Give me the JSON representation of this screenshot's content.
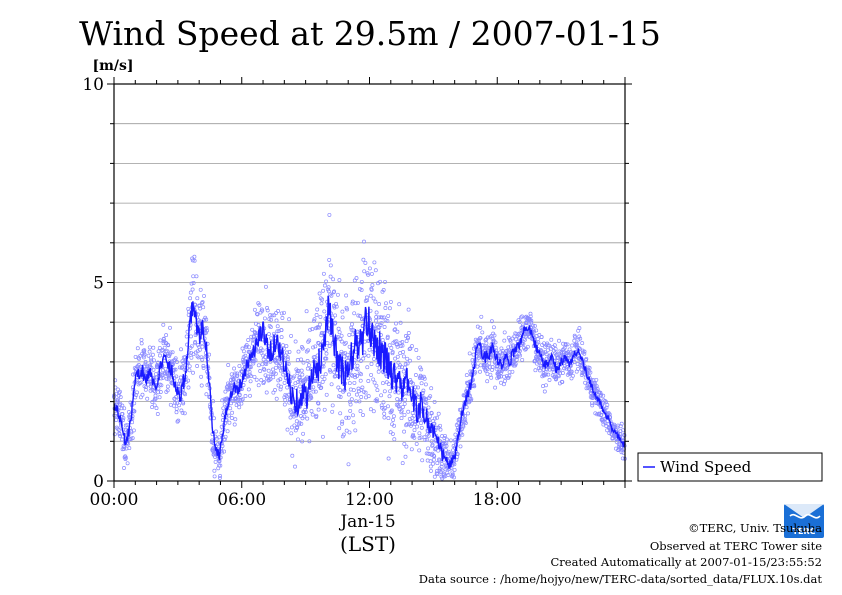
{
  "chart_data": {
    "type": "scatter",
    "title": "Wind Speed at 29.5m / 2007-01-15",
    "ylabel_unit": "[m/s]",
    "xlabel": "Jan-15",
    "xlabel_sub": "(LST)",
    "x_unit": "hours (LST)",
    "xlim": [
      0,
      24
    ],
    "ylim": [
      0,
      10
    ],
    "y_ticks": [
      {
        "value": 0,
        "label": "0"
      },
      {
        "value": 5,
        "label": "5"
      },
      {
        "value": 10,
        "label": "10"
      }
    ],
    "x_ticks": [
      {
        "value": 0,
        "label": "00:00"
      },
      {
        "value": 6,
        "label": "06:00"
      },
      {
        "value": 12,
        "label": "12:00"
      },
      {
        "value": 18,
        "label": "18:00"
      }
    ],
    "grid": true,
    "legend_position": "right",
    "series": [
      {
        "name": "Wind Speed",
        "color": "#1a1aff",
        "scatter_color": "#8a8aff",
        "mean_profile": [
          [
            0.0,
            1.9
          ],
          [
            0.3,
            1.6
          ],
          [
            0.5,
            1.1
          ],
          [
            0.6,
            1.0
          ],
          [
            0.8,
            1.6
          ],
          [
            1.0,
            2.6
          ],
          [
            1.3,
            2.8
          ],
          [
            1.5,
            2.5
          ],
          [
            1.7,
            2.8
          ],
          [
            1.9,
            2.3
          ],
          [
            2.1,
            2.7
          ],
          [
            2.3,
            3.1
          ],
          [
            2.5,
            3.0
          ],
          [
            2.7,
            2.8
          ],
          [
            2.9,
            2.4
          ],
          [
            3.1,
            2.1
          ],
          [
            3.3,
            2.6
          ],
          [
            3.5,
            3.4
          ],
          [
            3.6,
            4.0
          ],
          [
            3.7,
            4.6
          ],
          [
            3.8,
            4.3
          ],
          [
            3.9,
            3.8
          ],
          [
            4.0,
            3.6
          ],
          [
            4.2,
            3.9
          ],
          [
            4.35,
            3.3
          ],
          [
            4.5,
            2.3
          ],
          [
            4.6,
            1.4
          ],
          [
            4.75,
            0.8
          ],
          [
            4.9,
            0.6
          ],
          [
            5.05,
            0.9
          ],
          [
            5.2,
            1.5
          ],
          [
            5.4,
            2.1
          ],
          [
            5.6,
            2.4
          ],
          [
            5.8,
            2.3
          ],
          [
            6.0,
            2.5
          ],
          [
            6.2,
            2.9
          ],
          [
            6.4,
            3.1
          ],
          [
            6.6,
            3.3
          ],
          [
            6.8,
            3.6
          ],
          [
            7.0,
            3.8
          ],
          [
            7.2,
            3.4
          ],
          [
            7.4,
            3.2
          ],
          [
            7.6,
            3.6
          ],
          [
            7.8,
            3.3
          ],
          [
            8.0,
            2.9
          ],
          [
            8.2,
            2.5
          ],
          [
            8.4,
            2.1
          ],
          [
            8.6,
            2.0
          ],
          [
            8.8,
            2.2
          ],
          [
            9.0,
            2.1
          ],
          [
            9.2,
            2.4
          ],
          [
            9.4,
            2.7
          ],
          [
            9.6,
            2.9
          ],
          [
            9.8,
            3.3
          ],
          [
            10.0,
            4.1
          ],
          [
            10.1,
            4.6
          ],
          [
            10.2,
            3.8
          ],
          [
            10.4,
            3.3
          ],
          [
            10.6,
            2.9
          ],
          [
            10.8,
            2.6
          ],
          [
            11.0,
            2.7
          ],
          [
            11.2,
            3.2
          ],
          [
            11.4,
            3.5
          ],
          [
            11.6,
            3.4
          ],
          [
            11.8,
            3.9
          ],
          [
            12.0,
            3.9
          ],
          [
            12.2,
            3.6
          ],
          [
            12.4,
            3.4
          ],
          [
            12.6,
            3.2
          ],
          [
            12.8,
            3.0
          ],
          [
            13.0,
            2.8
          ],
          [
            13.2,
            2.6
          ],
          [
            13.4,
            2.7
          ],
          [
            13.6,
            2.2
          ],
          [
            13.8,
            2.6
          ],
          [
            14.0,
            2.1
          ],
          [
            14.2,
            1.8
          ],
          [
            14.4,
            1.9
          ],
          [
            14.6,
            1.7
          ],
          [
            14.8,
            1.4
          ],
          [
            15.0,
            1.3
          ],
          [
            15.2,
            0.9
          ],
          [
            15.4,
            0.7
          ],
          [
            15.6,
            0.5
          ],
          [
            15.8,
            0.4
          ],
          [
            16.0,
            0.6
          ],
          [
            16.2,
            1.2
          ],
          [
            16.4,
            1.8
          ],
          [
            16.6,
            2.2
          ],
          [
            16.8,
            2.5
          ],
          [
            17.0,
            3.2
          ],
          [
            17.2,
            3.4
          ],
          [
            17.4,
            3.1
          ],
          [
            17.6,
            3.2
          ],
          [
            17.8,
            3.4
          ],
          [
            18.0,
            3.0
          ],
          [
            18.2,
            2.9
          ],
          [
            18.4,
            3.1
          ],
          [
            18.6,
            3.0
          ],
          [
            18.8,
            3.3
          ],
          [
            19.0,
            3.4
          ],
          [
            19.2,
            3.7
          ],
          [
            19.4,
            3.9
          ],
          [
            19.6,
            3.8
          ],
          [
            19.8,
            3.4
          ],
          [
            20.0,
            3.2
          ],
          [
            20.2,
            2.9
          ],
          [
            20.4,
            3.0
          ],
          [
            20.6,
            3.1
          ],
          [
            20.8,
            2.8
          ],
          [
            21.0,
            3.0
          ],
          [
            21.2,
            3.1
          ],
          [
            21.4,
            2.9
          ],
          [
            21.6,
            3.2
          ],
          [
            21.8,
            3.3
          ],
          [
            22.0,
            3.0
          ],
          [
            22.2,
            2.7
          ],
          [
            22.4,
            2.4
          ],
          [
            22.6,
            2.2
          ],
          [
            22.8,
            2.0
          ],
          [
            23.0,
            1.7
          ],
          [
            23.2,
            1.6
          ],
          [
            23.4,
            1.3
          ],
          [
            23.6,
            1.2
          ],
          [
            23.8,
            1.0
          ],
          [
            24.0,
            0.9
          ]
        ],
        "scatter_spread": [
          [
            0.0,
            0.6
          ],
          [
            3.0,
            0.7
          ],
          [
            3.7,
            1.3
          ],
          [
            4.5,
            0.7
          ],
          [
            6.0,
            0.6
          ],
          [
            7.0,
            1.0
          ],
          [
            8.0,
            1.2
          ],
          [
            9.0,
            1.4
          ],
          [
            10.0,
            1.6
          ],
          [
            11.0,
            1.7
          ],
          [
            12.0,
            1.8
          ],
          [
            13.0,
            1.6
          ],
          [
            14.0,
            1.4
          ],
          [
            15.0,
            1.1
          ],
          [
            15.8,
            0.5
          ],
          [
            16.5,
            0.5
          ],
          [
            17.0,
            0.6
          ],
          [
            19.0,
            0.5
          ],
          [
            22.0,
            0.4
          ],
          [
            24.0,
            0.3
          ]
        ]
      }
    ]
  },
  "footer": {
    "copyright": "©TERC, Univ. Tsukuba",
    "observed": "Observed at TERC Tower site",
    "created": "Created Automatically at 2007-01-15/23:55:52",
    "source": "Data source : /home/hojyo/new/TERC-data/sorted_data/FLUX.10s.dat"
  },
  "logo": {
    "text": "TERC",
    "color": "#1a6fd6",
    "icon": "terc-logo-icon"
  }
}
